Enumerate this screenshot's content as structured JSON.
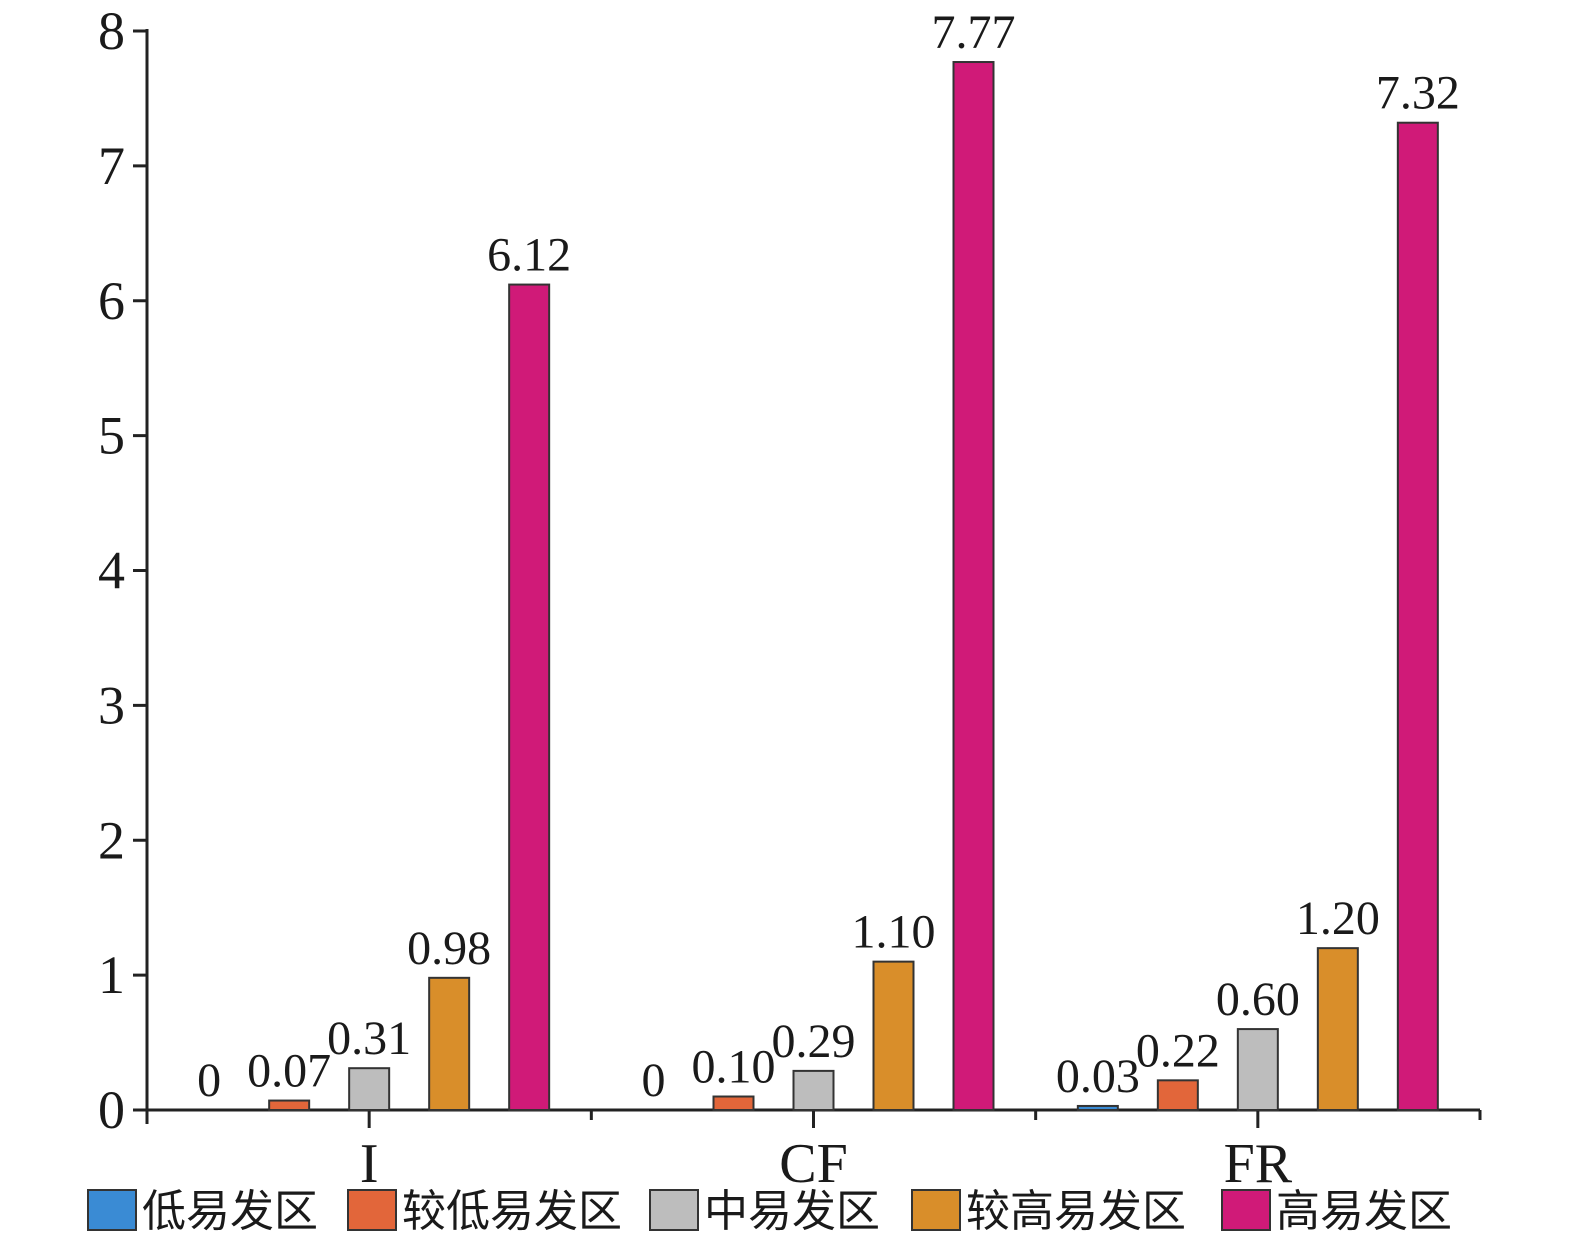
{
  "chart_data": {
    "type": "bar",
    "title": "",
    "xlabel": "",
    "ylabel": "",
    "categories": [
      "I",
      "CF",
      "FR"
    ],
    "ylim": [
      0,
      8
    ],
    "yticks": [
      "0",
      "1",
      "2",
      "3",
      "4",
      "5",
      "6",
      "7",
      "8"
    ],
    "series": [
      {
        "name": "低易发区",
        "color": "#3a8bd4",
        "values": [
          0,
          0,
          0.03
        ],
        "labels": [
          "0",
          "0",
          "0.03"
        ]
      },
      {
        "name": "较低易发区",
        "color": "#e2663a",
        "values": [
          0.07,
          0.1,
          0.22
        ],
        "labels": [
          "0.07",
          "0.10",
          "0.22"
        ]
      },
      {
        "name": "中易发区",
        "color": "#bdbdbd",
        "values": [
          0.31,
          0.29,
          0.6
        ],
        "labels": [
          "0.31",
          "0.29",
          "0.60"
        ]
      },
      {
        "name": "较高易发区",
        "color": "#d98e2a",
        "values": [
          0.98,
          1.1,
          1.2
        ],
        "labels": [
          "0.98",
          "1.10",
          "1.20"
        ]
      },
      {
        "name": "高易发区",
        "color": "#d01a78",
        "values": [
          6.12,
          7.77,
          7.32
        ],
        "labels": [
          "6.12",
          "7.77",
          "7.32"
        ]
      }
    ],
    "legend_position": "bottom",
    "grid": false
  }
}
